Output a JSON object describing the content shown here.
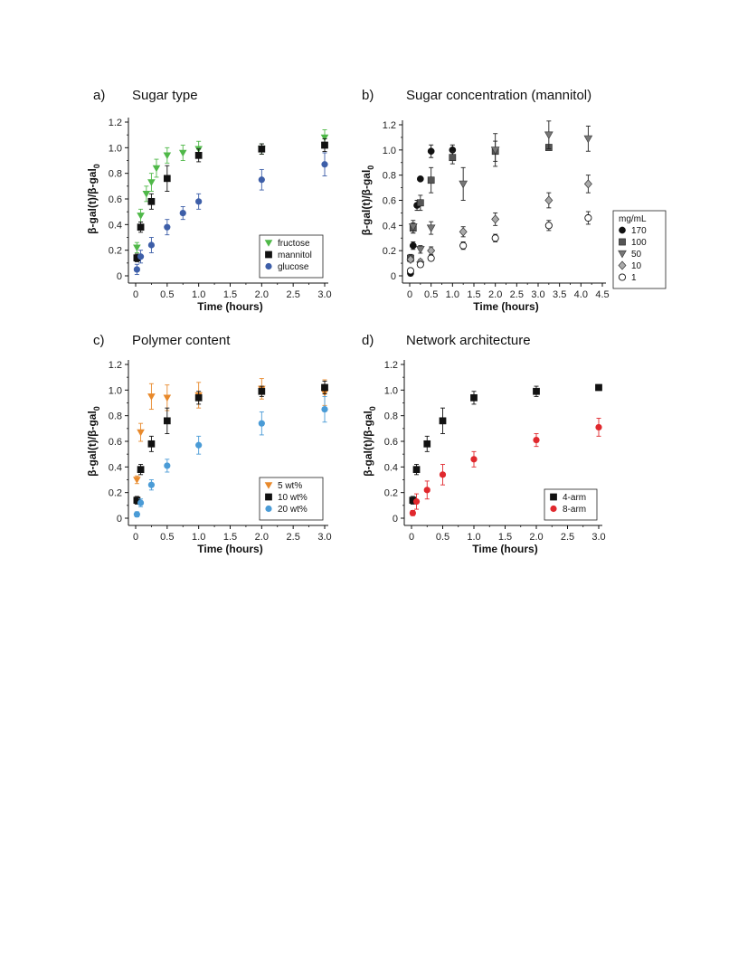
{
  "chart_data": [
    {
      "type": "scatter",
      "panel_label": "a)",
      "title": "Sugar type",
      "xlabel": "Time (hours)",
      "ylabel": "β-gal(t)/β-gal",
      "ylabel_sub": "0",
      "xlim": [
        0,
        3.0
      ],
      "ylim": [
        0,
        1.2
      ],
      "xticks": [
        "0",
        "0.5",
        "1.0",
        "1.5",
        "2.0",
        "2.5",
        "3.0"
      ],
      "yticks": [
        "0",
        "0.2",
        "0.4",
        "0.6",
        "0.8",
        "1.0",
        "1.2"
      ],
      "legend_position": "bottom-right",
      "series": [
        {
          "name": "fructose",
          "marker": "triangle-down",
          "color": "#4fb848",
          "x": [
            0.02,
            0.08,
            0.17,
            0.25,
            0.33,
            0.5,
            0.75,
            1.0,
            2.0,
            3.0
          ],
          "y": [
            0.22,
            0.47,
            0.64,
            0.73,
            0.84,
            0.94,
            0.96,
            0.99,
            0.99,
            1.08
          ],
          "err": [
            0.04,
            0.05,
            0.06,
            0.07,
            0.07,
            0.06,
            0.06,
            0.06,
            0.04,
            0.06
          ]
        },
        {
          "name": "mannitol",
          "marker": "square",
          "color": "#111111",
          "x": [
            0.02,
            0.08,
            0.25,
            0.5,
            1.0,
            2.0,
            3.0
          ],
          "y": [
            0.14,
            0.38,
            0.58,
            0.76,
            0.94,
            0.99,
            1.02
          ],
          "err": [
            0.03,
            0.04,
            0.06,
            0.1,
            0.05,
            0.04,
            0.05
          ]
        },
        {
          "name": "glucose",
          "marker": "circle",
          "color": "#3d5ea8",
          "x": [
            0.02,
            0.08,
            0.25,
            0.5,
            0.75,
            1.0,
            2.0,
            3.0
          ],
          "y": [
            0.05,
            0.15,
            0.24,
            0.38,
            0.49,
            0.58,
            0.75,
            0.87
          ],
          "err": [
            0.04,
            0.05,
            0.06,
            0.06,
            0.05,
            0.06,
            0.08,
            0.09
          ]
        }
      ]
    },
    {
      "type": "scatter",
      "panel_label": "b)",
      "title": "Sugar concentration (mannitol)",
      "xlabel": "Time (hours)",
      "ylabel": "β-gal(t)/β-gal",
      "ylabel_sub": "0",
      "xlim": [
        0,
        4.5
      ],
      "ylim": [
        0,
        1.2
      ],
      "xticks": [
        "0",
        "0.5",
        "1.0",
        "1.5",
        "2.0",
        "2.5",
        "3.0",
        "3.5",
        "4.0",
        "4.5"
      ],
      "yticks": [
        "0",
        "0.2",
        "0.4",
        "0.6",
        "0.8",
        "1.0",
        "1.2"
      ],
      "legend_title": "mg/mL",
      "legend_position": "right",
      "series": [
        {
          "name": "170",
          "marker": "circle",
          "color": "#111111",
          "x": [
            0.02,
            0.08,
            0.17,
            0.25,
            0.5,
            1.0
          ],
          "y": [
            0.02,
            0.24,
            0.56,
            0.77,
            0.99,
            1.0
          ],
          "err": [
            0.02,
            0.03,
            0.04,
            0.0,
            0.05,
            0.04
          ]
        },
        {
          "name": "100",
          "marker": "square",
          "color": "#555555",
          "x": [
            0.02,
            0.08,
            0.25,
            0.5,
            1.0,
            2.0,
            3.25
          ],
          "y": [
            0.14,
            0.38,
            0.58,
            0.76,
            0.94,
            0.99,
            1.02
          ],
          "err": [
            0.03,
            0.04,
            0.06,
            0.1,
            0.05,
            0.08,
            0.0
          ]
        },
        {
          "name": "50",
          "marker": "triangle-down",
          "color": "#777777",
          "x": [
            0.08,
            0.25,
            0.5,
            1.25,
            2.0,
            3.25,
            4.17
          ],
          "y": [
            0.39,
            0.21,
            0.38,
            0.73,
            1.0,
            1.12,
            1.09
          ],
          "err": [
            0.05,
            0.03,
            0.05,
            0.13,
            0.13,
            0.11,
            0.1
          ]
        },
        {
          "name": "10",
          "marker": "diamond",
          "color": "#aaaaaa",
          "x": [
            0.02,
            0.25,
            0.5,
            1.25,
            2.0,
            3.25,
            4.17
          ],
          "y": [
            0.13,
            0.11,
            0.2,
            0.35,
            0.45,
            0.6,
            0.73
          ],
          "err": [
            0.02,
            0.02,
            0.03,
            0.04,
            0.05,
            0.06,
            0.07
          ]
        },
        {
          "name": "1",
          "marker": "circle-open",
          "color": "#ffffff",
          "x": [
            0.02,
            0.25,
            0.5,
            1.25,
            2.0,
            3.25,
            4.17
          ],
          "y": [
            0.04,
            0.09,
            0.14,
            0.24,
            0.3,
            0.4,
            0.46
          ],
          "err": [
            0.02,
            0.02,
            0.02,
            0.03,
            0.03,
            0.04,
            0.05
          ]
        }
      ]
    },
    {
      "type": "scatter",
      "panel_label": "c)",
      "title": "Polymer content",
      "xlabel": "Time (hours)",
      "ylabel": "β-gal(t)/β-gal",
      "ylabel_sub": "0",
      "xlim": [
        0,
        3.0
      ],
      "ylim": [
        0,
        1.2
      ],
      "xticks": [
        "0",
        "0.5",
        "1.0",
        "1.5",
        "2.0",
        "2.5",
        "3.0"
      ],
      "yticks": [
        "0",
        "0.2",
        "0.4",
        "0.6",
        "0.8",
        "1.0",
        "1.2"
      ],
      "legend_position": "bottom-right",
      "series": [
        {
          "name": "5 wt%",
          "marker": "triangle-down",
          "color": "#e8892b",
          "x": [
            0.02,
            0.08,
            0.25,
            0.5,
            1.0,
            2.0,
            3.0
          ],
          "y": [
            0.3,
            0.67,
            0.95,
            0.94,
            0.96,
            1.01,
            0.98
          ],
          "err": [
            0.03,
            0.07,
            0.1,
            0.1,
            0.1,
            0.08,
            0.1
          ]
        },
        {
          "name": "10 wt%",
          "marker": "square",
          "color": "#111111",
          "x": [
            0.02,
            0.08,
            0.25,
            0.5,
            1.0,
            2.0,
            3.0
          ],
          "y": [
            0.14,
            0.38,
            0.58,
            0.76,
            0.94,
            0.99,
            1.02
          ],
          "err": [
            0.03,
            0.04,
            0.06,
            0.1,
            0.05,
            0.04,
            0.05
          ]
        },
        {
          "name": "20 wt%",
          "marker": "circle",
          "color": "#4a9bd6",
          "x": [
            0.02,
            0.08,
            0.25,
            0.5,
            1.0,
            2.0,
            3.0
          ],
          "y": [
            0.03,
            0.12,
            0.26,
            0.41,
            0.57,
            0.74,
            0.85
          ],
          "err": [
            0.02,
            0.03,
            0.04,
            0.05,
            0.07,
            0.09,
            0.1
          ]
        }
      ]
    },
    {
      "type": "scatter",
      "panel_label": "d)",
      "title": "Network architecture",
      "xlabel": "Time (hours)",
      "ylabel": "β-gal(t)/β-gal",
      "ylabel_sub": "0",
      "xlim": [
        0,
        3.0
      ],
      "ylim": [
        0,
        1.2
      ],
      "xticks": [
        "0",
        "0.5",
        "1.0",
        "1.5",
        "2.0",
        "2.5",
        "3.0"
      ],
      "yticks": [
        "0",
        "0.2",
        "0.4",
        "0.6",
        "0.8",
        "1.0",
        "1.2"
      ],
      "legend_position": "bottom-right",
      "series": [
        {
          "name": "4-arm",
          "marker": "square",
          "color": "#111111",
          "x": [
            0.02,
            0.08,
            0.25,
            0.5,
            1.0,
            2.0,
            3.0
          ],
          "y": [
            0.14,
            0.38,
            0.58,
            0.76,
            0.94,
            0.99,
            1.02
          ],
          "err": [
            0.03,
            0.04,
            0.06,
            0.1,
            0.05,
            0.04,
            0.0
          ]
        },
        {
          "name": "8-arm",
          "marker": "circle",
          "color": "#e0282d",
          "x": [
            0.02,
            0.08,
            0.25,
            0.5,
            1.0,
            2.0,
            3.0
          ],
          "y": [
            0.04,
            0.13,
            0.22,
            0.34,
            0.46,
            0.61,
            0.71
          ],
          "err": [
            0.02,
            0.06,
            0.07,
            0.08,
            0.06,
            0.05,
            0.07
          ]
        }
      ]
    }
  ]
}
